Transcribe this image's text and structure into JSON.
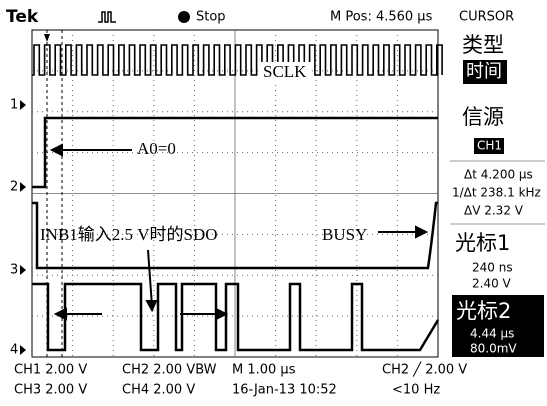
{
  "header": {
    "brand": "Tek",
    "status": "Stop",
    "position": "M Pos: 4.560 µs"
  },
  "side_panel": {
    "title": "CURSOR",
    "type_label": "类型",
    "type_value": "时间",
    "source_label": "信源",
    "source_value": "CH1",
    "delta_t": "Δt 4.200 µs",
    "inverse_delta_t": "1/Δt 238.1 kHz",
    "delta_v": "ΔV 2.32 V",
    "cursor1": {
      "label": "光标1",
      "time": "240 ns",
      "voltage": "2.40 V"
    },
    "cursor2": {
      "label": "光标2",
      "time": "4.44 µs",
      "voltage": "80.0mV"
    }
  },
  "channel_markers": [
    "1",
    "2",
    "3",
    "4"
  ],
  "annotations": {
    "sclk": "SCLK",
    "a0": "A0=0",
    "sdo": "INB1输入2.5 V时的SDO",
    "busy": "BUSY"
  },
  "footer": {
    "ch1": "CH1  2.00 V",
    "ch2": "CH2  2.00 VBW",
    "timebase": "M 1.00 µs",
    "trigger": "CH2 ╱ 2.00 V",
    "ch3": "CH3  2.00 V",
    "ch4": "CH4  2.00 V",
    "date": "16-Jan-13 10:52",
    "frequency": "<10 Hz"
  }
}
